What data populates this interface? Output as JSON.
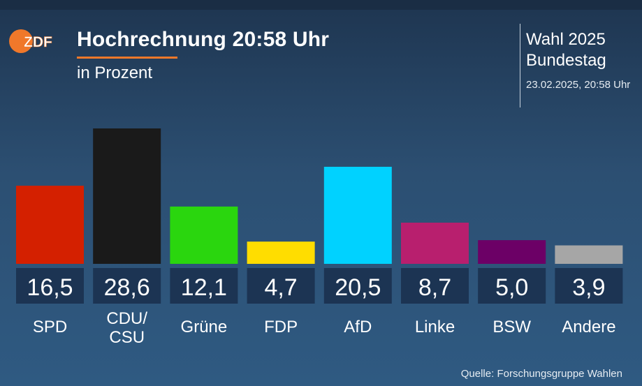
{
  "header": {
    "title": "Hochrechnung 20:58 Uhr",
    "subtitle": "in Prozent",
    "election_line1": "Wahl 2025",
    "election_line2": "Bundestag",
    "datetime": "23.02.2025, 20:58 Uhr"
  },
  "logo": {
    "name": "zdf-logo",
    "text": "ZDF",
    "color": "#f0782a"
  },
  "source": "Quelle: Forschungsgruppe Wahlen",
  "chart_data": {
    "type": "bar",
    "title": "Hochrechnung 20:58 Uhr",
    "ylabel": "in Prozent",
    "ylim": [
      0,
      28.6
    ],
    "categories": [
      "SPD",
      "CDU/CSU",
      "Grüne",
      "FDP",
      "AfD",
      "Linke",
      "BSW",
      "Andere"
    ],
    "values": [
      16.5,
      28.6,
      12.1,
      4.7,
      20.5,
      8.7,
      5.0,
      3.9
    ],
    "value_labels": [
      "16,5",
      "28,6",
      "12,1",
      "4,7",
      "20,5",
      "8,7",
      "5,0",
      "3,9"
    ],
    "colors": [
      "#d42000",
      "#1a1a1a",
      "#2ad60e",
      "#ffdd00",
      "#00d2ff",
      "#b81f6e",
      "#6c0066",
      "#a6a6a6"
    ],
    "grid": false,
    "legend": "none"
  }
}
